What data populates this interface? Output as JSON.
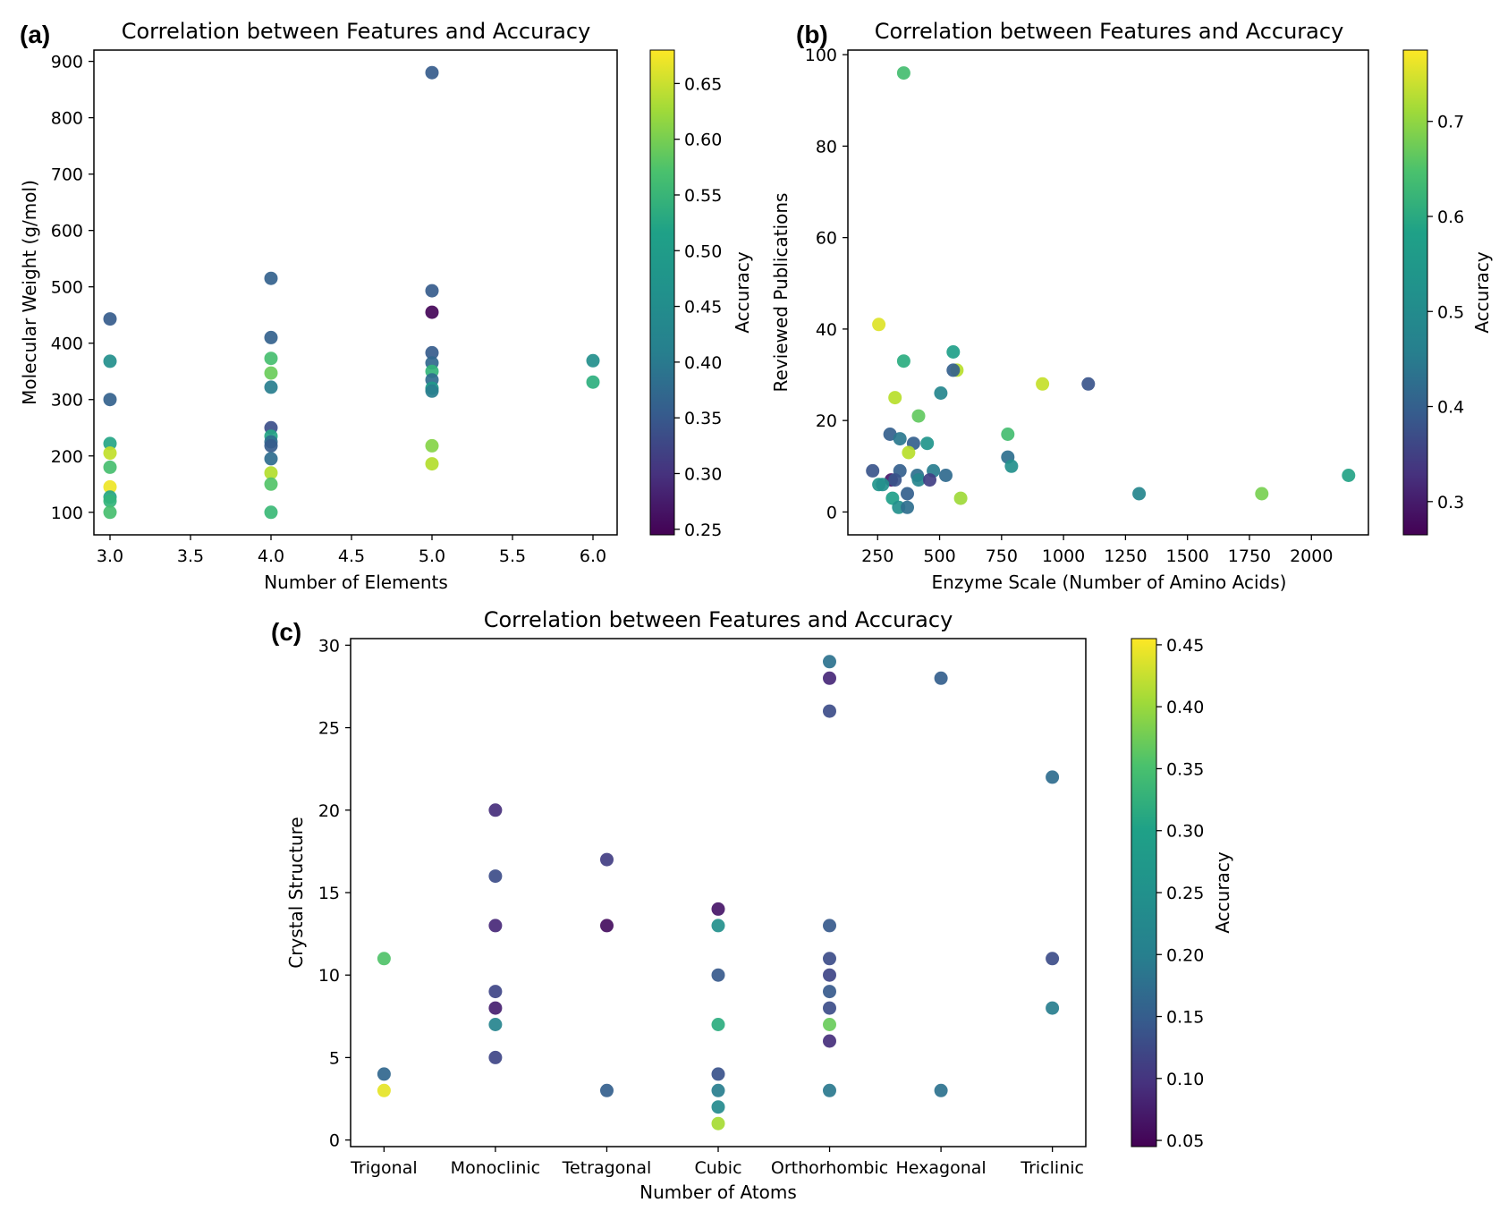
{
  "chart_data": [
    {
      "panel": "(a)",
      "type": "scatter",
      "title": "Correlation between Features and Accuracy",
      "xlabel": "Number of Elements",
      "ylabel": "Molecular Weight (g/mol)",
      "xlim": [
        2.9,
        6.15
      ],
      "ylim": [
        60,
        920
      ],
      "xticks": [
        3.0,
        3.5,
        4.0,
        4.5,
        5.0,
        5.5,
        6.0
      ],
      "xtick_labels": [
        "3.0",
        "3.5",
        "4.0",
        "4.5",
        "5.0",
        "5.5",
        "6.0"
      ],
      "yticks": [
        100,
        200,
        300,
        400,
        500,
        600,
        700,
        800,
        900
      ],
      "ytick_labels": [
        "100",
        "200",
        "300",
        "400",
        "500",
        "600",
        "700",
        "800",
        "900"
      ],
      "colorbar": {
        "label": "Accuracy",
        "range": [
          0.245,
          0.68
        ],
        "ticks": [
          0.25,
          0.3,
          0.35,
          0.4,
          0.45,
          0.5,
          0.55,
          0.6,
          0.65
        ],
        "tick_labels": [
          "0.25",
          "0.30",
          "0.35",
          "0.40",
          "0.45",
          "0.50",
          "0.55",
          "0.60",
          "0.65"
        ]
      },
      "points": [
        {
          "x": 3,
          "y": 443,
          "acc": 0.37
        },
        {
          "x": 3,
          "y": 368,
          "acc": 0.46
        },
        {
          "x": 3,
          "y": 300,
          "acc": 0.38
        },
        {
          "x": 3,
          "y": 222,
          "acc": 0.5
        },
        {
          "x": 3,
          "y": 205,
          "acc": 0.64
        },
        {
          "x": 3,
          "y": 180,
          "acc": 0.55
        },
        {
          "x": 3,
          "y": 145,
          "acc": 0.67
        },
        {
          "x": 3,
          "y": 127,
          "acc": 0.5
        },
        {
          "x": 3,
          "y": 120,
          "acc": 0.53
        },
        {
          "x": 3,
          "y": 100,
          "acc": 0.55
        },
        {
          "x": 4,
          "y": 515,
          "acc": 0.38
        },
        {
          "x": 4,
          "y": 410,
          "acc": 0.38
        },
        {
          "x": 4,
          "y": 373,
          "acc": 0.55
        },
        {
          "x": 4,
          "y": 347,
          "acc": 0.58
        },
        {
          "x": 4,
          "y": 322,
          "acc": 0.43
        },
        {
          "x": 4,
          "y": 250,
          "acc": 0.35
        },
        {
          "x": 4,
          "y": 235,
          "acc": 0.5
        },
        {
          "x": 4,
          "y": 225,
          "acc": 0.4
        },
        {
          "x": 4,
          "y": 218,
          "acc": 0.37
        },
        {
          "x": 4,
          "y": 195,
          "acc": 0.4
        },
        {
          "x": 4,
          "y": 170,
          "acc": 0.63
        },
        {
          "x": 4,
          "y": 150,
          "acc": 0.56
        },
        {
          "x": 4,
          "y": 100,
          "acc": 0.54
        },
        {
          "x": 5,
          "y": 880,
          "acc": 0.37
        },
        {
          "x": 5,
          "y": 493,
          "acc": 0.37
        },
        {
          "x": 5,
          "y": 455,
          "acc": 0.25
        },
        {
          "x": 5,
          "y": 383,
          "acc": 0.37
        },
        {
          "x": 5,
          "y": 365,
          "acc": 0.39
        },
        {
          "x": 5,
          "y": 350,
          "acc": 0.53
        },
        {
          "x": 5,
          "y": 335,
          "acc": 0.4
        },
        {
          "x": 5,
          "y": 320,
          "acc": 0.48
        },
        {
          "x": 5,
          "y": 315,
          "acc": 0.43
        },
        {
          "x": 5,
          "y": 218,
          "acc": 0.6
        },
        {
          "x": 5,
          "y": 186,
          "acc": 0.63
        },
        {
          "x": 6,
          "y": 369,
          "acc": 0.46
        },
        {
          "x": 6,
          "y": 331,
          "acc": 0.52
        }
      ]
    },
    {
      "panel": "(b)",
      "type": "scatter",
      "title": "Correlation between Features and Accuracy",
      "xlabel": "Enzyme Scale (Number of Amino Acids)",
      "ylabel": "Reviewed Publications",
      "xlim": [
        130,
        2230
      ],
      "ylim": [
        -5,
        101
      ],
      "xticks": [
        250,
        500,
        750,
        1000,
        1250,
        1500,
        1750,
        2000
      ],
      "xtick_labels": [
        "250",
        "500",
        "750",
        "1000",
        "1250",
        "1500",
        "1750",
        "2000"
      ],
      "yticks": [
        0,
        20,
        40,
        60,
        80,
        100
      ],
      "ytick_labels": [
        "0",
        "20",
        "40",
        "60",
        "80",
        "100"
      ],
      "colorbar": {
        "label": "Accuracy",
        "range": [
          0.265,
          0.775
        ],
        "ticks": [
          0.3,
          0.4,
          0.5,
          0.6,
          0.7
        ],
        "tick_labels": [
          "0.3",
          "0.4",
          "0.5",
          "0.6",
          "0.7"
        ]
      },
      "points": [
        {
          "x": 355,
          "y": 96,
          "acc": 0.62
        },
        {
          "x": 255,
          "y": 41,
          "acc": 0.75
        },
        {
          "x": 555,
          "y": 35,
          "acc": 0.55
        },
        {
          "x": 355,
          "y": 33,
          "acc": 0.58
        },
        {
          "x": 570,
          "y": 31,
          "acc": 0.72
        },
        {
          "x": 555,
          "y": 31,
          "acc": 0.42
        },
        {
          "x": 915,
          "y": 28,
          "acc": 0.73
        },
        {
          "x": 1100,
          "y": 28,
          "acc": 0.4
        },
        {
          "x": 505,
          "y": 26,
          "acc": 0.5
        },
        {
          "x": 320,
          "y": 25,
          "acc": 0.72
        },
        {
          "x": 415,
          "y": 21,
          "acc": 0.65
        },
        {
          "x": 300,
          "y": 17,
          "acc": 0.42
        },
        {
          "x": 775,
          "y": 17,
          "acc": 0.62
        },
        {
          "x": 340,
          "y": 16,
          "acc": 0.47
        },
        {
          "x": 395,
          "y": 15,
          "acc": 0.42
        },
        {
          "x": 450,
          "y": 15,
          "acc": 0.53
        },
        {
          "x": 375,
          "y": 13,
          "acc": 0.72
        },
        {
          "x": 775,
          "y": 12,
          "acc": 0.45
        },
        {
          "x": 790,
          "y": 10,
          "acc": 0.52
        },
        {
          "x": 230,
          "y": 9,
          "acc": 0.4
        },
        {
          "x": 340,
          "y": 9,
          "acc": 0.42
        },
        {
          "x": 475,
          "y": 9,
          "acc": 0.48
        },
        {
          "x": 410,
          "y": 8,
          "acc": 0.45
        },
        {
          "x": 525,
          "y": 8,
          "acc": 0.44
        },
        {
          "x": 2150,
          "y": 8,
          "acc": 0.56
        },
        {
          "x": 305,
          "y": 7,
          "acc": 0.3
        },
        {
          "x": 320,
          "y": 7,
          "acc": 0.4
        },
        {
          "x": 415,
          "y": 7,
          "acc": 0.5
        },
        {
          "x": 460,
          "y": 7,
          "acc": 0.36
        },
        {
          "x": 255,
          "y": 6,
          "acc": 0.53
        },
        {
          "x": 270,
          "y": 6,
          "acc": 0.52
        },
        {
          "x": 370,
          "y": 4,
          "acc": 0.42
        },
        {
          "x": 1305,
          "y": 4,
          "acc": 0.5
        },
        {
          "x": 1800,
          "y": 4,
          "acc": 0.67
        },
        {
          "x": 310,
          "y": 3,
          "acc": 0.55
        },
        {
          "x": 585,
          "y": 3,
          "acc": 0.7
        },
        {
          "x": 335,
          "y": 1,
          "acc": 0.52
        },
        {
          "x": 370,
          "y": 1,
          "acc": 0.45
        }
      ]
    },
    {
      "panel": "(c)",
      "type": "scatter",
      "title": "Correlation between Features and Accuracy",
      "xlabel": "Number of Atoms",
      "ylabel": "Crystal Structure",
      "categories": [
        "Trigonal",
        "Monoclinic",
        "Tetragonal",
        "Cubic",
        "Orthorhombic",
        "Hexagonal",
        "Triclinic"
      ],
      "xlim": [
        -0.3,
        6.3
      ],
      "ylim": [
        -0.4,
        30.4
      ],
      "yticks": [
        0,
        5,
        10,
        15,
        20,
        25,
        30
      ],
      "ytick_labels": [
        "0",
        "5",
        "10",
        "15",
        "20",
        "25",
        "30"
      ],
      "colorbar": {
        "label": "Accuracy",
        "range": [
          0.045,
          0.455
        ],
        "ticks": [
          0.05,
          0.1,
          0.15,
          0.2,
          0.25,
          0.3,
          0.35,
          0.4,
          0.45
        ],
        "tick_labels": [
          "0.05",
          "0.10",
          "0.15",
          "0.20",
          "0.25",
          "0.30",
          "0.35",
          "0.40",
          "0.45"
        ]
      },
      "points": [
        {
          "x": "Trigonal",
          "y": 11,
          "acc": 0.34
        },
        {
          "x": "Trigonal",
          "y": 4,
          "acc": 0.18
        },
        {
          "x": "Trigonal",
          "y": 3,
          "acc": 0.44
        },
        {
          "x": "Monoclinic",
          "y": 20,
          "acc": 0.1
        },
        {
          "x": "Monoclinic",
          "y": 16,
          "acc": 0.14
        },
        {
          "x": "Monoclinic",
          "y": 13,
          "acc": 0.09
        },
        {
          "x": "Monoclinic",
          "y": 9,
          "acc": 0.13
        },
        {
          "x": "Monoclinic",
          "y": 8,
          "acc": 0.08
        },
        {
          "x": "Monoclinic",
          "y": 7,
          "acc": 0.23
        },
        {
          "x": "Monoclinic",
          "y": 5,
          "acc": 0.13
        },
        {
          "x": "Tetragonal",
          "y": 17,
          "acc": 0.12
        },
        {
          "x": "Tetragonal",
          "y": 13,
          "acc": 0.06
        },
        {
          "x": "Tetragonal",
          "y": 3,
          "acc": 0.17
        },
        {
          "x": "Cubic",
          "y": 14,
          "acc": 0.07
        },
        {
          "x": "Cubic",
          "y": 13,
          "acc": 0.25
        },
        {
          "x": "Cubic",
          "y": 10,
          "acc": 0.16
        },
        {
          "x": "Cubic",
          "y": 7,
          "acc": 0.3
        },
        {
          "x": "Cubic",
          "y": 4,
          "acc": 0.15
        },
        {
          "x": "Cubic",
          "y": 3,
          "acc": 0.22
        },
        {
          "x": "Cubic",
          "y": 2,
          "acc": 0.24
        },
        {
          "x": "Cubic",
          "y": 1,
          "acc": 0.4
        },
        {
          "x": "Orthorhombic",
          "y": 29,
          "acc": 0.2
        },
        {
          "x": "Orthorhombic",
          "y": 28,
          "acc": 0.09
        },
        {
          "x": "Orthorhombic",
          "y": 26,
          "acc": 0.14
        },
        {
          "x": "Orthorhombic",
          "y": 13,
          "acc": 0.16
        },
        {
          "x": "Orthorhombic",
          "y": 11,
          "acc": 0.14
        },
        {
          "x": "Orthorhombic",
          "y": 10,
          "acc": 0.13
        },
        {
          "x": "Orthorhombic",
          "y": 9,
          "acc": 0.16
        },
        {
          "x": "Orthorhombic",
          "y": 8,
          "acc": 0.14
        },
        {
          "x": "Orthorhombic",
          "y": 7,
          "acc": 0.36
        },
        {
          "x": "Orthorhombic",
          "y": 6,
          "acc": 0.1
        },
        {
          "x": "Orthorhombic",
          "y": 3,
          "acc": 0.21
        },
        {
          "x": "Hexagonal",
          "y": 28,
          "acc": 0.17
        },
        {
          "x": "Hexagonal",
          "y": 3,
          "acc": 0.2
        },
        {
          "x": "Triclinic",
          "y": 22,
          "acc": 0.19
        },
        {
          "x": "Triclinic",
          "y": 11,
          "acc": 0.14
        },
        {
          "x": "Triclinic",
          "y": 8,
          "acc": 0.22
        }
      ]
    }
  ]
}
